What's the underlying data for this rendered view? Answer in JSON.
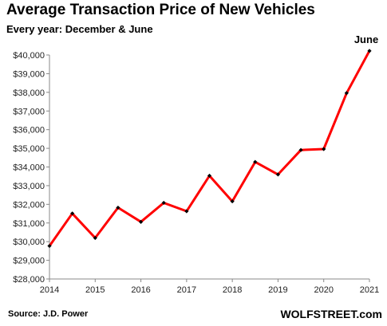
{
  "chart_data": {
    "type": "line",
    "title": "Average Transaction  Price of New Vehicles",
    "subtitle": "Every year: December & June",
    "xlabel": "",
    "ylabel": "",
    "x": [
      2014.0,
      2014.5,
      2015.0,
      2015.5,
      2016.0,
      2016.5,
      2017.0,
      2017.5,
      2018.0,
      2018.5,
      2019.0,
      2019.5,
      2020.0,
      2020.5,
      2021.0
    ],
    "xlim": [
      2014,
      2021
    ],
    "ylim": [
      28000,
      40000
    ],
    "xticks": [
      "2014",
      "2015",
      "2016",
      "2017",
      "2018",
      "2019",
      "2020",
      "2021"
    ],
    "yticks": [
      "$28,000",
      "$29,000",
      "$30,000",
      "$31,000",
      "$32,000",
      "$33,000",
      "$34,000",
      "$35,000",
      "$36,000",
      "$37,000",
      "$38,000",
      "$39,000",
      "$40,000"
    ],
    "series": [
      {
        "values": [
          29770,
          31510,
          30200,
          31820,
          31060,
          32080,
          31630,
          33530,
          32160,
          34270,
          33600,
          34910,
          34960,
          37960,
          40220
        ],
        "color": "#ff0000",
        "marker_color": "#000000"
      }
    ],
    "annotations": [
      {
        "text": "June",
        "x": 2021.0,
        "y": 40220
      }
    ],
    "source": "Source: J.D. Power",
    "brand": "WOLFSTREET.com",
    "grid": false,
    "legend": "none"
  }
}
